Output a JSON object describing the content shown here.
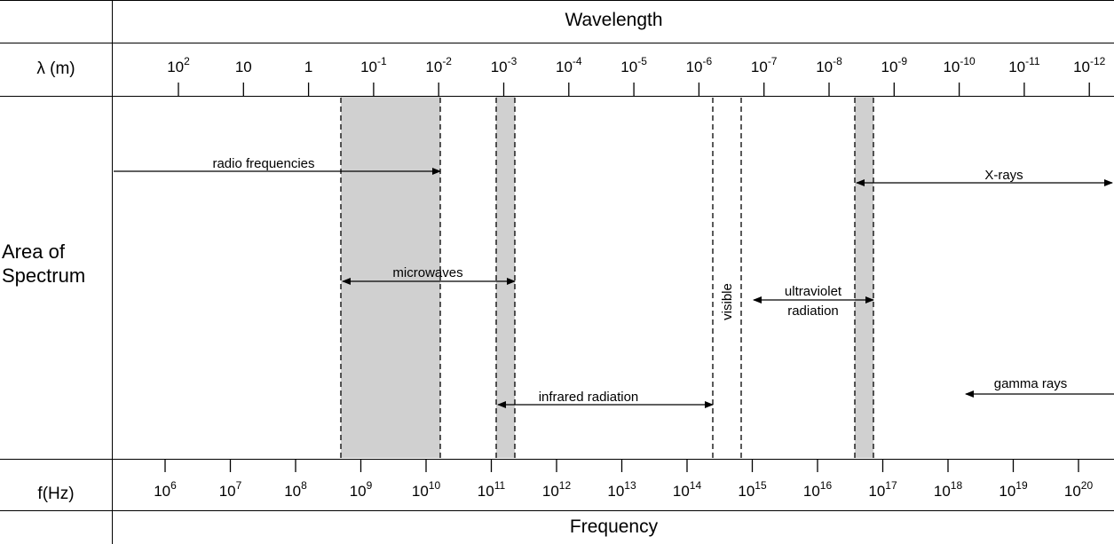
{
  "header": {
    "title": "Wavelength",
    "wave_row_label": "λ (m)"
  },
  "footer": {
    "title": "Frequency",
    "freq_row_label": "f(Hz)"
  },
  "row_label": {
    "line1": "Area of",
    "line2": "Spectrum"
  },
  "wavelength_ticks": [
    {
      "base": "10",
      "exp": "2"
    },
    {
      "base": "10",
      "exp": ""
    },
    {
      "base": "1",
      "exp": ""
    },
    {
      "base": "10",
      "exp": "-1"
    },
    {
      "base": "10",
      "exp": "-2"
    },
    {
      "base": "10",
      "exp": "-3"
    },
    {
      "base": "10",
      "exp": "-4"
    },
    {
      "base": "10",
      "exp": "-5"
    },
    {
      "base": "10",
      "exp": "-6"
    },
    {
      "base": "10",
      "exp": "-7"
    },
    {
      "base": "10",
      "exp": "-8"
    },
    {
      "base": "10",
      "exp": "-9"
    },
    {
      "base": "10",
      "exp": "-10"
    },
    {
      "base": "10",
      "exp": "-11"
    },
    {
      "base": "10",
      "exp": "-12"
    }
  ],
  "frequency_ticks": [
    {
      "base": "10",
      "exp": "6"
    },
    {
      "base": "10",
      "exp": "7"
    },
    {
      "base": "10",
      "exp": "8"
    },
    {
      "base": "10",
      "exp": "9"
    },
    {
      "base": "10",
      "exp": "10"
    },
    {
      "base": "10",
      "exp": "11"
    },
    {
      "base": "10",
      "exp": "12"
    },
    {
      "base": "10",
      "exp": "13"
    },
    {
      "base": "10",
      "exp": "14"
    },
    {
      "base": "10",
      "exp": "15"
    },
    {
      "base": "10",
      "exp": "16"
    },
    {
      "base": "10",
      "exp": "17"
    },
    {
      "base": "10",
      "exp": "18"
    },
    {
      "base": "10",
      "exp": "19"
    },
    {
      "base": "10",
      "exp": "20"
    }
  ],
  "regions": {
    "radio": "radio frequencies",
    "microwaves": "microwaves",
    "infrared": "infrared radiation",
    "visible": "visible",
    "ultraviolet_line1": "ultraviolet",
    "ultraviolet_line2": "radiation",
    "xrays": "X-rays",
    "gamma": "gamma rays"
  },
  "colors": {
    "line": "#000000",
    "overlap_band": "#d0d0d0",
    "background": "#ffffff"
  }
}
